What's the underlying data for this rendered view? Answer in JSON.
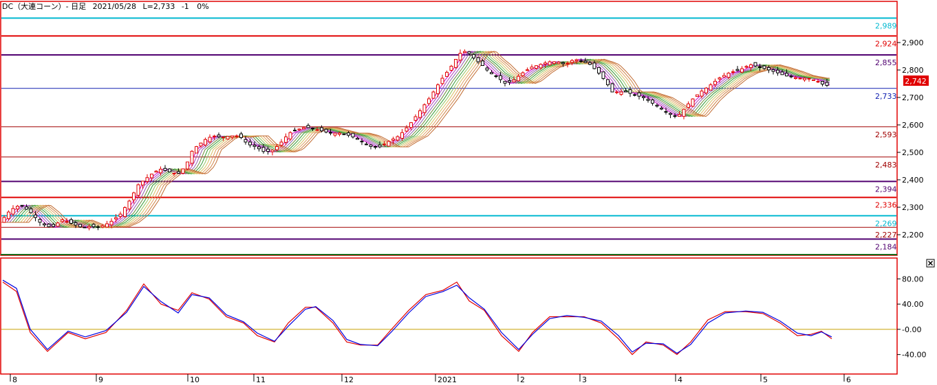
{
  "header": {
    "title": "DC（大連コーン）- 日足",
    "date": "2021/05/28",
    "last": "L=2,733",
    "change": "-1",
    "change_pct": "0%"
  },
  "last_price_badge": "2,742",
  "close_icon": "close-icon",
  "colors": {
    "frame": "#e00000",
    "up_candle": "#e00000",
    "down_candle": "#000000",
    "osc_fast": "#e00000",
    "osc_slow": "#0000e0",
    "osc_zero": "#c8a000",
    "ribbon": [
      "#cc00cc",
      "#b040c0",
      "#9060b0",
      "#6a8a3a",
      "#2f9a2f",
      "#8fc35f",
      "#d8c060",
      "#e0a060",
      "#d08040",
      "#c06a30"
    ]
  },
  "chart_data": [
    {
      "type": "line",
      "panel": "price",
      "y_range": [
        2140,
        3010
      ],
      "y_ticks": [
        "2,200",
        "2,300",
        "2,400",
        "2,500",
        "2,600",
        "2,700",
        "2,800",
        "2,900"
      ],
      "y_tick_values": [
        2200,
        2300,
        2400,
        2500,
        2600,
        2700,
        2800,
        2900
      ],
      "x_labels": [
        "8",
        "9",
        "10",
        "11",
        "12",
        "2021",
        "2",
        "3",
        "4",
        "5",
        "6"
      ],
      "levels": [
        {
          "value": 2989,
          "label": "2,989",
          "color": "#00b8d0",
          "width": 2
        },
        {
          "value": 2924,
          "label": "2,924",
          "color": "#e00000",
          "width": 2
        },
        {
          "value": 2855,
          "label": "2,855",
          "color": "#500070",
          "width": 2
        },
        {
          "value": 2733,
          "label": "2,733",
          "color": "#1020b0",
          "width": 1
        },
        {
          "value": 2593,
          "label": "2,593",
          "color": "#a00000",
          "width": 1
        },
        {
          "value": 2483,
          "label": "2,483",
          "color": "#a00000",
          "width": 1
        },
        {
          "value": 2394,
          "label": "2,394",
          "color": "#500070",
          "width": 2
        },
        {
          "value": 2336,
          "label": "2,336",
          "color": "#e00000",
          "width": 2
        },
        {
          "value": 2269,
          "label": "2,269",
          "color": "#00b8d0",
          "width": 2
        },
        {
          "value": 2227,
          "label": "2,227",
          "color": "#a00000",
          "width": 1
        },
        {
          "value": 2184,
          "label": "2,184",
          "color": "#500070",
          "width": 2
        }
      ],
      "series": [
        {
          "x": [
            0,
            15,
            30,
            45,
            60,
            75,
            90,
            105,
            120,
            130,
            145,
            160,
            175,
            190,
            200,
            210,
            220,
            232,
            245,
            258,
            270,
            280,
            290,
            300,
            310,
            322,
            335,
            348,
            360,
            372,
            385,
            398,
            410,
            420,
            430,
            440,
            450,
            465,
            480,
            495,
            510,
            525,
            540,
            552,
            565,
            580,
            595,
            610,
            625,
            640,
            655,
            668,
            678,
            690,
            700,
            712,
            725,
            735,
            745,
            760,
            772,
            785,
            798,
            810,
            822,
            835,
            848,
            858,
            870,
            880,
            890,
            900,
            910,
            922,
            935,
            948,
            960,
            972,
            985,
            995,
            1005,
            1018,
            1030,
            1045,
            1060,
            1075,
            1090,
            1105,
            1118,
            1130,
            1140,
            1150,
            1162,
            1175,
            1188,
            1198,
            1208
          ],
          "values": [
            2245,
            2290,
            2310,
            2280,
            2240,
            2225,
            2255,
            2240,
            2225,
            2230,
            2228,
            2245,
            2275,
            2330,
            2380,
            2400,
            2420,
            2440,
            2430,
            2420,
            2450,
            2510,
            2530,
            2550,
            2560,
            2555,
            2560,
            2560,
            2530,
            2520,
            2500,
            2510,
            2540,
            2570,
            2580,
            2590,
            2590,
            2580,
            2570,
            2570,
            2560,
            2540,
            2520,
            2520,
            2540,
            2560,
            2600,
            2650,
            2700,
            2760,
            2810,
            2860,
            2870,
            2840,
            2820,
            2790,
            2770,
            2750,
            2760,
            2790,
            2810,
            2820,
            2830,
            2830,
            2820,
            2840,
            2830,
            2820,
            2790,
            2760,
            2720,
            2720,
            2720,
            2710,
            2700,
            2680,
            2660,
            2640,
            2630,
            2660,
            2690,
            2720,
            2740,
            2770,
            2790,
            2800,
            2820,
            2810,
            2800,
            2790,
            2780,
            2775,
            2770,
            2770,
            2760,
            2745,
            2742
          ]
        }
      ]
    },
    {
      "type": "line",
      "panel": "oscillator",
      "y_range": [
        -60,
        100
      ],
      "y_ticks": [
        "80.00",
        "40.00",
        "-0.00",
        "-40.00"
      ],
      "y_tick_values": [
        80,
        40,
        0,
        -40
      ],
      "series": [
        {
          "name": "fast",
          "x": [
            0,
            20,
            40,
            65,
            95,
            120,
            150,
            180,
            205,
            230,
            255,
            275,
            300,
            325,
            350,
            370,
            395,
            415,
            440,
            455,
            480,
            500,
            520,
            545,
            565,
            590,
            615,
            640,
            660,
            678,
            700,
            725,
            750,
            770,
            795,
            820,
            845,
            870,
            895,
            915,
            935,
            960,
            980,
            1000,
            1025,
            1050,
            1080,
            1105,
            1130,
            1155,
            1175,
            1190,
            1205
          ],
          "values": [
            75,
            60,
            -5,
            -35,
            -5,
            -15,
            -5,
            30,
            72,
            40,
            30,
            58,
            48,
            20,
            10,
            -10,
            -20,
            10,
            35,
            35,
            10,
            -20,
            -25,
            -25,
            0,
            30,
            55,
            62,
            75,
            45,
            30,
            -10,
            -35,
            -5,
            20,
            20,
            20,
            10,
            -15,
            -40,
            -20,
            -25,
            -40,
            -20,
            15,
            28,
            28,
            25,
            10,
            -10,
            -8,
            -3,
            -15
          ]
        },
        {
          "name": "slow",
          "x": [
            0,
            20,
            40,
            65,
            95,
            120,
            150,
            180,
            205,
            230,
            255,
            275,
            300,
            325,
            350,
            370,
            395,
            415,
            440,
            455,
            480,
            500,
            520,
            545,
            565,
            590,
            615,
            640,
            660,
            678,
            700,
            725,
            750,
            770,
            795,
            820,
            845,
            870,
            895,
            915,
            935,
            960,
            980,
            1000,
            1025,
            1050,
            1080,
            1105,
            1130,
            1155,
            1175,
            1190,
            1205
          ],
          "values": [
            78,
            65,
            0,
            -32,
            -3,
            -12,
            -2,
            27,
            68,
            44,
            26,
            55,
            50,
            23,
            12,
            -6,
            -19,
            5,
            32,
            36,
            14,
            -16,
            -24,
            -26,
            -4,
            26,
            52,
            60,
            70,
            50,
            32,
            -5,
            -32,
            -8,
            17,
            22,
            19,
            13,
            -10,
            -36,
            -22,
            -23,
            -38,
            -24,
            10,
            26,
            29,
            27,
            13,
            -6,
            -10,
            -4,
            -12
          ]
        }
      ]
    }
  ]
}
